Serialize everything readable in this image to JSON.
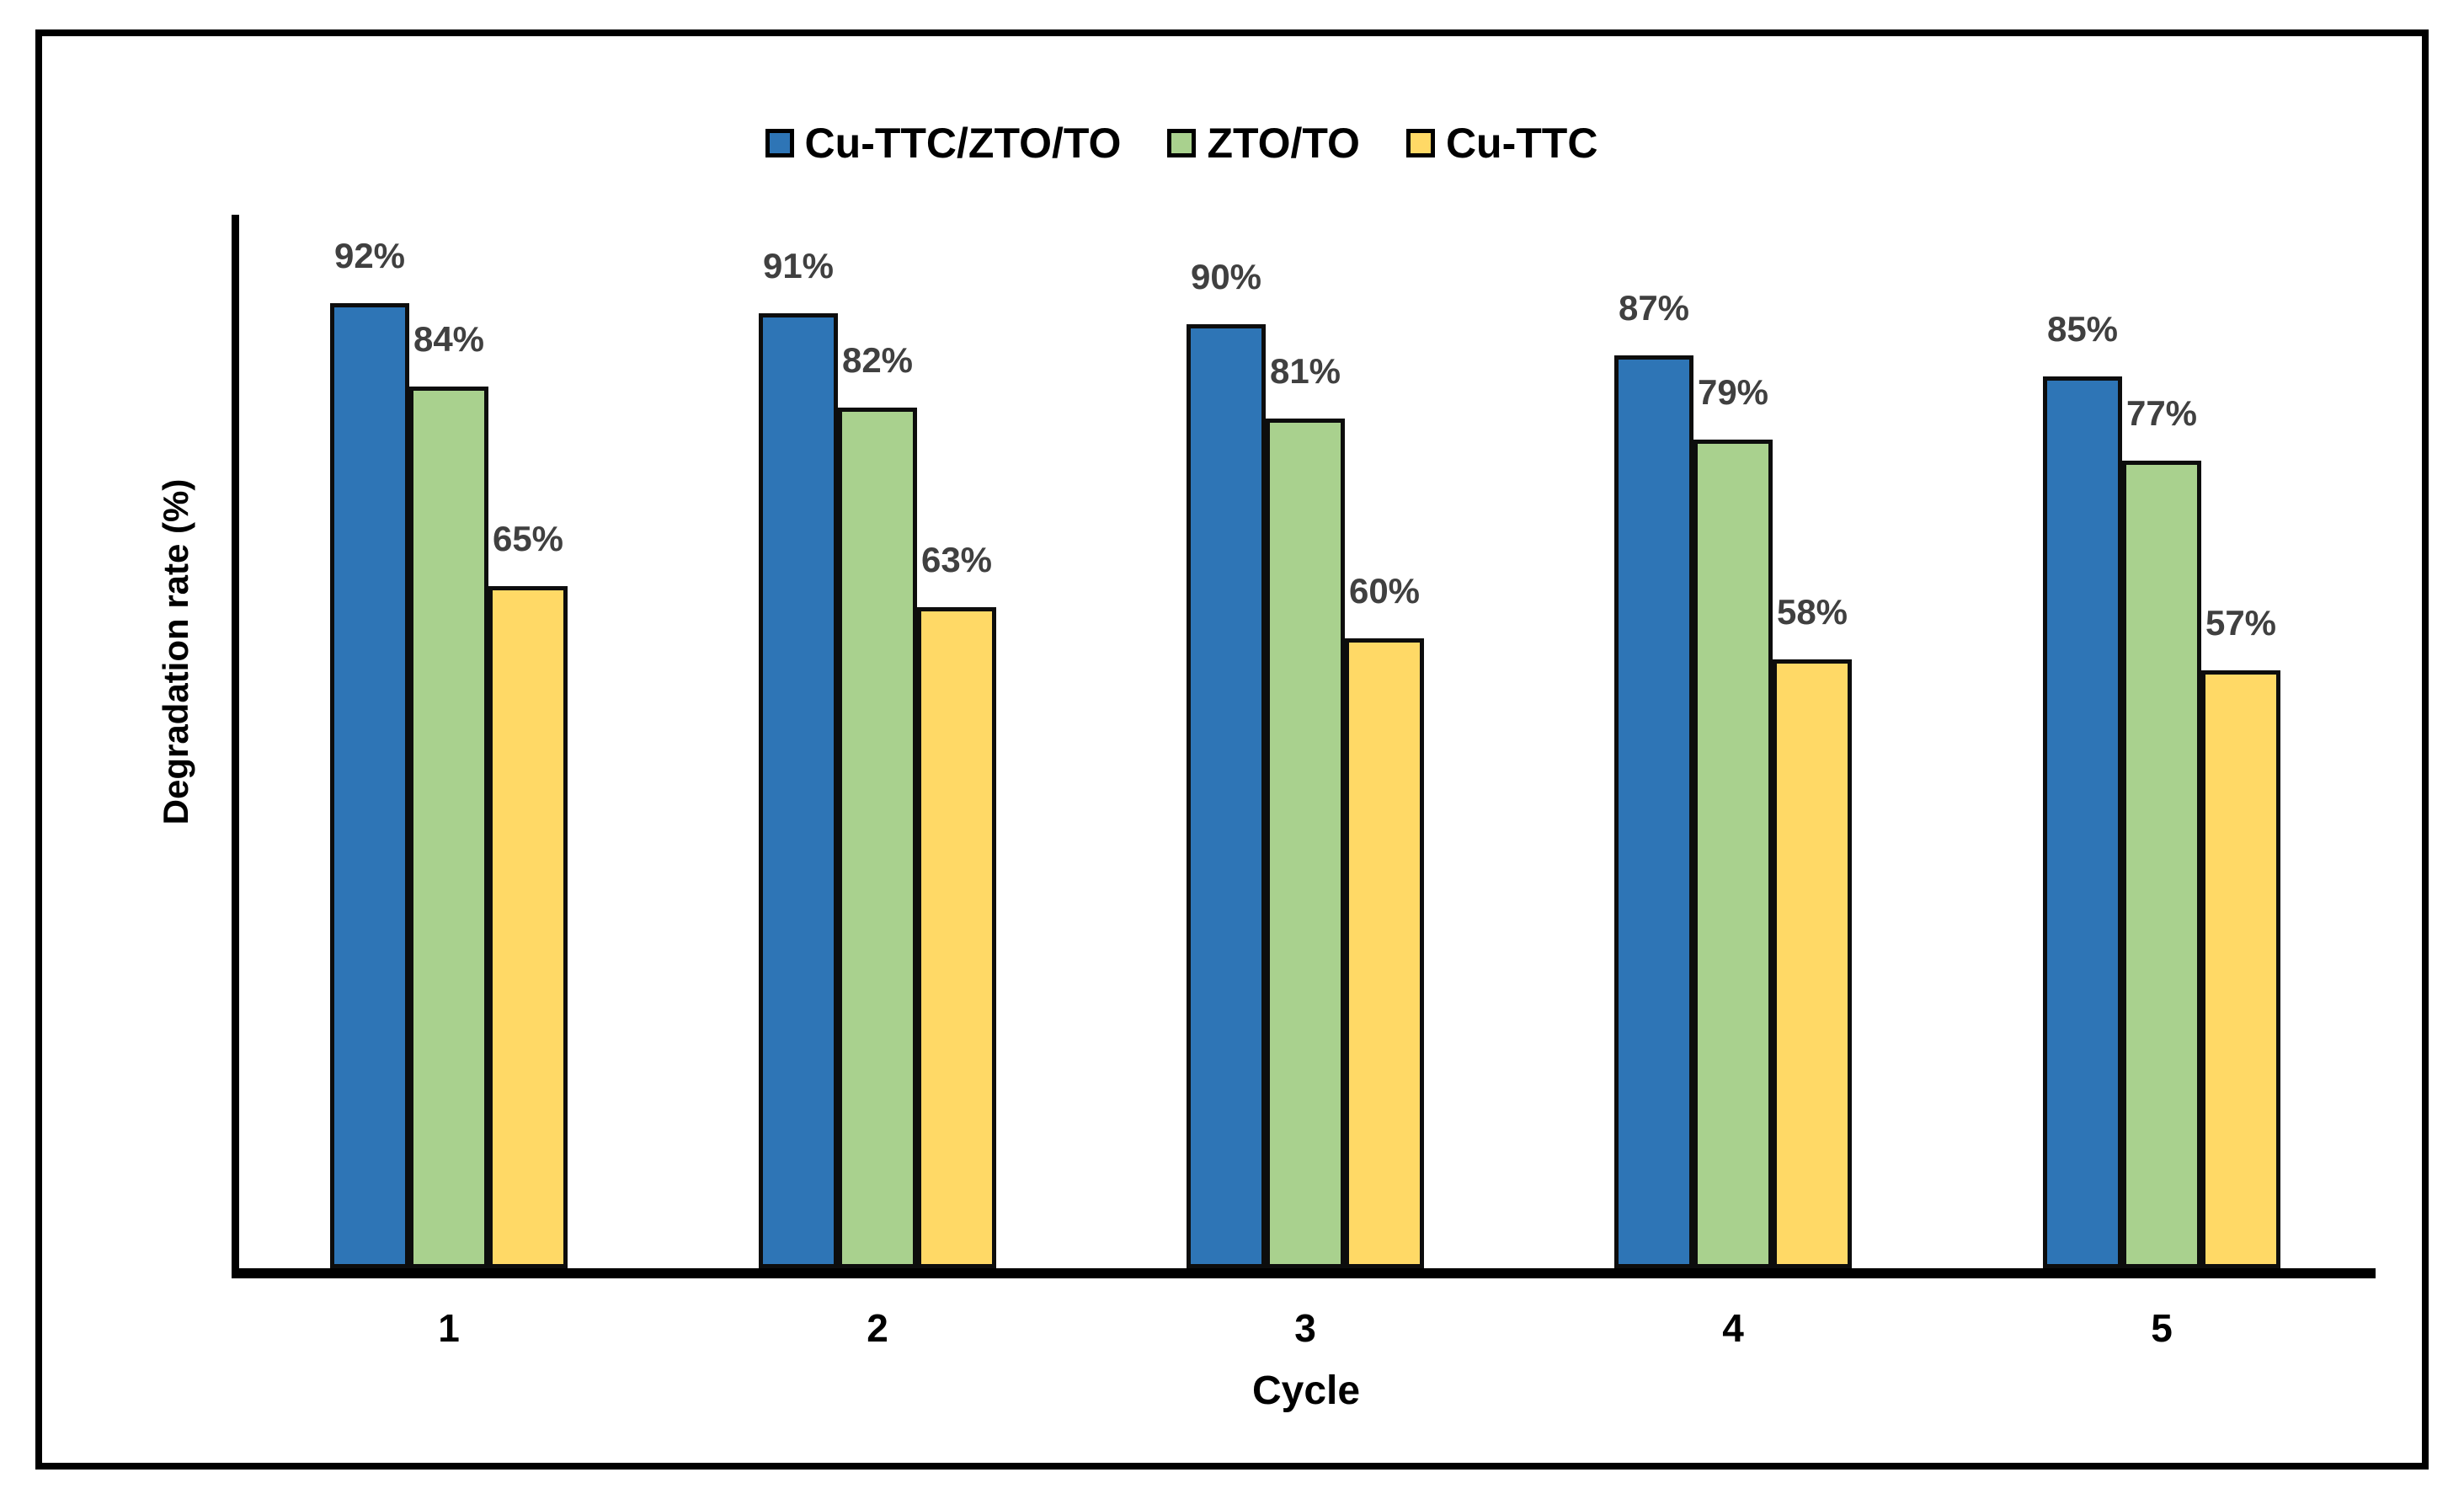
{
  "chart_data": {
    "type": "bar",
    "title": "",
    "xlabel": "Cycle",
    "ylabel": "Degradation rate (%)",
    "categories": [
      "1",
      "2",
      "3",
      "4",
      "5"
    ],
    "series": [
      {
        "name": "Cu-TTC/ZTO/TO",
        "color": "#2E75B6",
        "values": [
          92,
          91,
          90,
          87,
          85
        ]
      },
      {
        "name": "ZTO/TO",
        "color": "#A9D18E",
        "values": [
          84,
          82,
          81,
          79,
          77
        ]
      },
      {
        "name": "Cu-TTC",
        "color": "#FFD966",
        "values": [
          65,
          63,
          60,
          58,
          57
        ]
      }
    ],
    "value_suffix": "%",
    "ylim": [
      0,
      100
    ],
    "legend_position": "top",
    "grid": false,
    "axis_color": "#000000",
    "bar_border_color": "#0d0d0d",
    "data_label_color": "#404040"
  }
}
